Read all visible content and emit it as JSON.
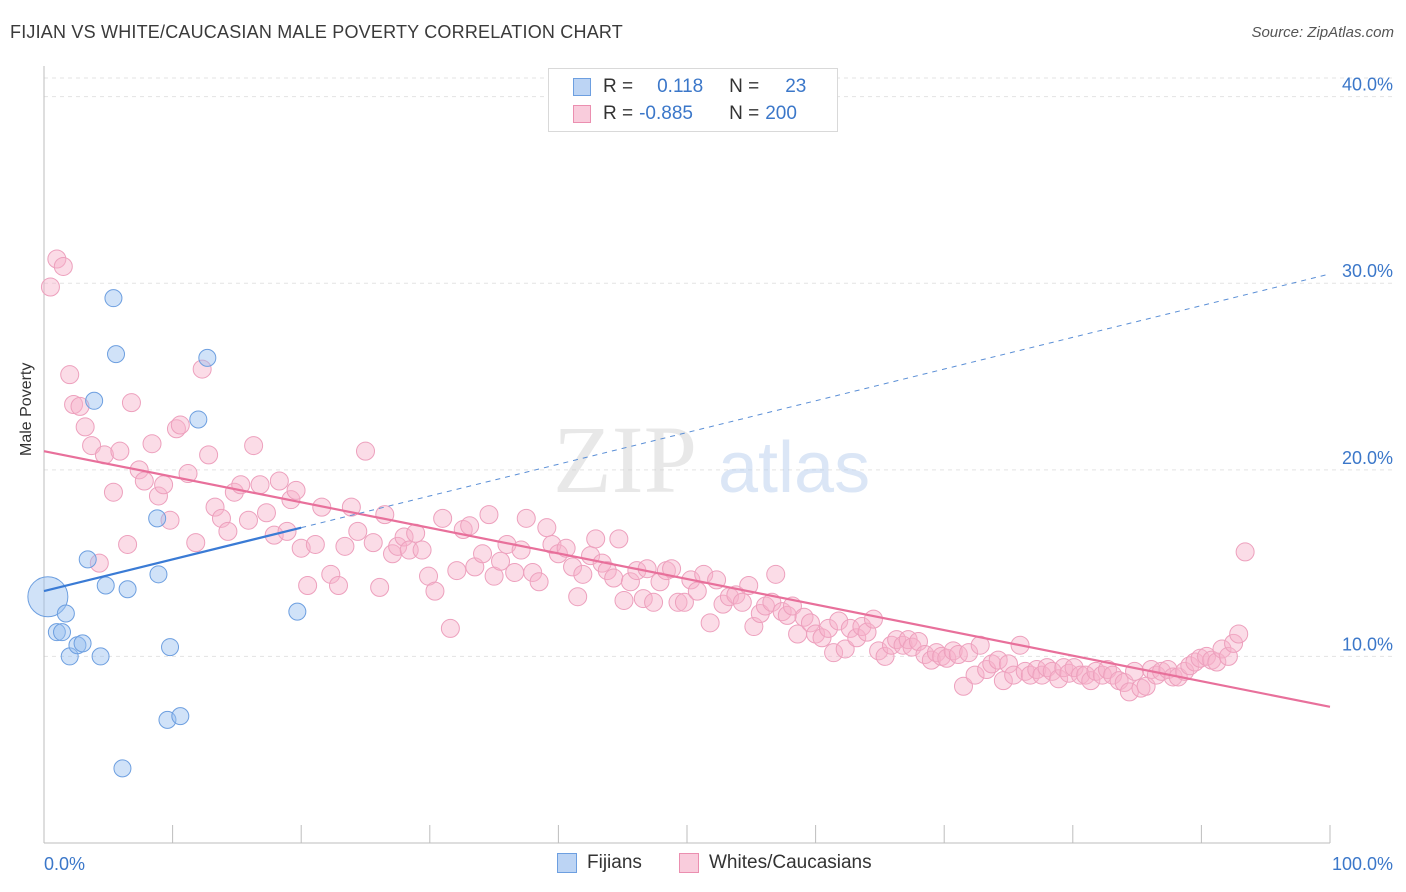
{
  "title": "FIJIAN VS WHITE/CAUCASIAN MALE POVERTY CORRELATION CHART",
  "source": "Source: ZipAtlas.com",
  "watermark": {
    "zip": "ZIP",
    "atlas": "atlas"
  },
  "stats": [
    {
      "r_label": "R =",
      "r_value": "0.118",
      "n_label": "N =",
      "n_value": "23",
      "color": "#aac8f0",
      "border": "#6d9fe0"
    },
    {
      "r_label": "R =",
      "r_value": "-0.885",
      "n_label": "N =",
      "n_value": "200",
      "color": "#f7c0d2",
      "border": "#eb8fb0"
    }
  ],
  "legend": [
    {
      "label": "Fijians",
      "color": "#bcd4f4",
      "border": "#6d9fe0"
    },
    {
      "label": "Whites/Caucasians",
      "color": "#f9ccdc",
      "border": "#eb8fb0"
    }
  ],
  "chart_data": {
    "type": "scatter",
    "title": "FIJIAN VS WHITE/CAUCASIAN MALE POVERTY CORRELATION CHART",
    "xlabel": "",
    "ylabel": "Male Poverty",
    "xlim": [
      0,
      100
    ],
    "ylim": [
      0,
      41
    ],
    "x_tick_labels": [
      "0.0%",
      "100.0%"
    ],
    "y_ticks": [
      10,
      20,
      30,
      40
    ],
    "y_tick_labels": [
      "10.0%",
      "20.0%",
      "30.0%",
      "40.0%"
    ],
    "grid": true,
    "legend_position": "bottom",
    "series": [
      {
        "name": "Fijians",
        "color": "#5b8fd6",
        "fill": "rgba(150,190,240,0.45)",
        "points": [
          [
            0.3,
            13.2
          ],
          [
            1.0,
            11.3
          ],
          [
            1.4,
            11.3
          ],
          [
            1.7,
            12.3
          ],
          [
            2.0,
            10.0
          ],
          [
            2.6,
            10.6
          ],
          [
            3.0,
            10.7
          ],
          [
            3.4,
            15.2
          ],
          [
            3.9,
            23.7
          ],
          [
            4.4,
            10.0
          ],
          [
            4.8,
            13.8
          ],
          [
            5.4,
            29.2
          ],
          [
            5.6,
            26.2
          ],
          [
            6.1,
            4.0
          ],
          [
            6.5,
            13.6
          ],
          [
            8.8,
            17.4
          ],
          [
            8.9,
            14.4
          ],
          [
            9.6,
            6.6
          ],
          [
            9.8,
            10.5
          ],
          [
            10.6,
            6.8
          ],
          [
            12.0,
            22.7
          ],
          [
            12.7,
            26.0
          ],
          [
            19.7,
            12.4
          ]
        ],
        "trend": {
          "x": [
            0,
            100
          ],
          "y": [
            13.5,
            30.5
          ],
          "solid_until": 20
        }
      },
      {
        "name": "Whites/Caucasians",
        "color": "#e8709b",
        "fill": "rgba(246,178,201,0.45)",
        "points": [
          [
            0.5,
            29.8
          ],
          [
            1.0,
            31.3
          ],
          [
            1.5,
            30.9
          ],
          [
            2.0,
            25.1
          ],
          [
            2.3,
            23.5
          ],
          [
            2.8,
            23.4
          ],
          [
            3.2,
            22.3
          ],
          [
            3.7,
            21.3
          ],
          [
            4.3,
            15.0
          ],
          [
            4.7,
            20.8
          ],
          [
            5.4,
            18.8
          ],
          [
            5.9,
            21.0
          ],
          [
            6.5,
            16.0
          ],
          [
            6.8,
            23.6
          ],
          [
            7.4,
            20.0
          ],
          [
            7.8,
            19.4
          ],
          [
            8.4,
            21.4
          ],
          [
            8.9,
            18.6
          ],
          [
            9.3,
            19.2
          ],
          [
            9.8,
            17.3
          ],
          [
            10.3,
            22.2
          ],
          [
            10.6,
            22.4
          ],
          [
            11.2,
            19.8
          ],
          [
            11.8,
            16.1
          ],
          [
            12.3,
            25.4
          ],
          [
            12.8,
            20.8
          ],
          [
            13.3,
            18.0
          ],
          [
            13.8,
            17.4
          ],
          [
            14.3,
            16.7
          ],
          [
            14.8,
            18.8
          ],
          [
            15.3,
            19.2
          ],
          [
            15.9,
            17.3
          ],
          [
            16.3,
            21.3
          ],
          [
            16.8,
            19.2
          ],
          [
            17.3,
            17.7
          ],
          [
            17.9,
            16.5
          ],
          [
            18.3,
            19.4
          ],
          [
            18.9,
            16.7
          ],
          [
            19.2,
            18.4
          ],
          [
            19.6,
            18.9
          ],
          [
            20.0,
            15.8
          ],
          [
            20.5,
            13.8
          ],
          [
            21.1,
            16.0
          ],
          [
            21.6,
            18.0
          ],
          [
            22.3,
            14.4
          ],
          [
            22.9,
            13.8
          ],
          [
            23.4,
            15.9
          ],
          [
            23.9,
            18.0
          ],
          [
            24.4,
            16.7
          ],
          [
            25.0,
            21.0
          ],
          [
            25.6,
            16.1
          ],
          [
            26.1,
            13.7
          ],
          [
            26.5,
            17.6
          ],
          [
            27.1,
            15.5
          ],
          [
            27.5,
            15.9
          ],
          [
            28.0,
            16.4
          ],
          [
            28.4,
            15.7
          ],
          [
            28.9,
            16.6
          ],
          [
            29.4,
            15.7
          ],
          [
            29.9,
            14.3
          ],
          [
            30.4,
            13.5
          ],
          [
            31.0,
            17.4
          ],
          [
            31.6,
            11.5
          ],
          [
            32.1,
            14.6
          ],
          [
            32.6,
            16.8
          ],
          [
            33.1,
            17.0
          ],
          [
            33.5,
            14.8
          ],
          [
            34.1,
            15.5
          ],
          [
            34.6,
            17.6
          ],
          [
            35.0,
            14.3
          ],
          [
            35.5,
            15.1
          ],
          [
            36.0,
            16.0
          ],
          [
            36.6,
            14.5
          ],
          [
            37.1,
            15.7
          ],
          [
            37.5,
            17.4
          ],
          [
            38.0,
            14.5
          ],
          [
            38.5,
            14.0
          ],
          [
            39.1,
            16.9
          ],
          [
            39.5,
            16.0
          ],
          [
            40.0,
            15.5
          ],
          [
            40.6,
            15.8
          ],
          [
            41.1,
            14.8
          ],
          [
            41.5,
            13.2
          ],
          [
            41.9,
            14.4
          ],
          [
            42.5,
            15.4
          ],
          [
            42.9,
            16.3
          ],
          [
            43.4,
            15.0
          ],
          [
            43.8,
            14.6
          ],
          [
            44.3,
            14.2
          ],
          [
            44.7,
            16.3
          ],
          [
            45.1,
            13.0
          ],
          [
            45.6,
            14.0
          ],
          [
            46.1,
            14.6
          ],
          [
            46.6,
            13.1
          ],
          [
            46.9,
            14.7
          ],
          [
            47.4,
            12.9
          ],
          [
            47.9,
            14.0
          ],
          [
            48.4,
            14.6
          ],
          [
            48.8,
            14.7
          ],
          [
            49.3,
            12.9
          ],
          [
            49.8,
            12.9
          ],
          [
            50.3,
            14.1
          ],
          [
            50.8,
            13.5
          ],
          [
            51.3,
            14.4
          ],
          [
            51.8,
            11.8
          ],
          [
            52.3,
            14.1
          ],
          [
            52.8,
            12.8
          ],
          [
            53.3,
            13.2
          ],
          [
            53.8,
            13.3
          ],
          [
            54.3,
            12.9
          ],
          [
            54.8,
            13.8
          ],
          [
            55.2,
            11.6
          ],
          [
            55.7,
            12.3
          ],
          [
            56.1,
            12.7
          ],
          [
            56.6,
            12.9
          ],
          [
            56.9,
            14.4
          ],
          [
            57.4,
            12.4
          ],
          [
            57.8,
            12.2
          ],
          [
            58.2,
            12.7
          ],
          [
            58.6,
            11.2
          ],
          [
            59.1,
            12.1
          ],
          [
            59.6,
            11.8
          ],
          [
            60.0,
            11.2
          ],
          [
            60.5,
            11.0
          ],
          [
            61.0,
            11.5
          ],
          [
            61.4,
            10.2
          ],
          [
            61.8,
            11.9
          ],
          [
            62.3,
            10.4
          ],
          [
            62.7,
            11.5
          ],
          [
            63.2,
            11.0
          ],
          [
            63.6,
            11.6
          ],
          [
            64.0,
            11.3
          ],
          [
            64.5,
            12.0
          ],
          [
            64.9,
            10.3
          ],
          [
            65.4,
            10.0
          ],
          [
            65.9,
            10.6
          ],
          [
            66.3,
            10.9
          ],
          [
            66.8,
            10.6
          ],
          [
            67.2,
            10.9
          ],
          [
            67.5,
            10.5
          ],
          [
            68.0,
            10.8
          ],
          [
            68.5,
            10.1
          ],
          [
            69.0,
            9.8
          ],
          [
            69.4,
            10.2
          ],
          [
            69.8,
            10.0
          ],
          [
            70.2,
            9.9
          ],
          [
            70.7,
            10.3
          ],
          [
            71.1,
            10.1
          ],
          [
            71.5,
            8.4
          ],
          [
            71.9,
            10.2
          ],
          [
            72.4,
            9.0
          ],
          [
            72.8,
            10.6
          ],
          [
            73.3,
            9.3
          ],
          [
            73.7,
            9.6
          ],
          [
            74.2,
            9.8
          ],
          [
            74.6,
            8.7
          ],
          [
            75.0,
            9.6
          ],
          [
            75.4,
            9.0
          ],
          [
            75.9,
            10.6
          ],
          [
            76.3,
            9.2
          ],
          [
            76.7,
            9.0
          ],
          [
            77.2,
            9.3
          ],
          [
            77.6,
            9.0
          ],
          [
            78.0,
            9.4
          ],
          [
            78.4,
            9.2
          ],
          [
            78.9,
            8.8
          ],
          [
            79.3,
            9.4
          ],
          [
            79.7,
            9.1
          ],
          [
            80.1,
            9.4
          ],
          [
            80.6,
            9.0
          ],
          [
            81.0,
            9.0
          ],
          [
            81.4,
            8.7
          ],
          [
            81.8,
            9.2
          ],
          [
            82.3,
            9.0
          ],
          [
            82.7,
            9.3
          ],
          [
            83.1,
            9.0
          ],
          [
            83.6,
            8.7
          ],
          [
            84.0,
            8.6
          ],
          [
            84.4,
            8.1
          ],
          [
            84.8,
            9.2
          ],
          [
            85.3,
            8.3
          ],
          [
            85.7,
            8.4
          ],
          [
            86.1,
            9.3
          ],
          [
            86.5,
            9.0
          ],
          [
            86.9,
            9.2
          ],
          [
            87.4,
            9.3
          ],
          [
            87.8,
            8.9
          ],
          [
            88.2,
            8.9
          ],
          [
            88.7,
            9.2
          ],
          [
            89.1,
            9.5
          ],
          [
            89.5,
            9.7
          ],
          [
            89.9,
            9.9
          ],
          [
            90.4,
            10.0
          ],
          [
            90.8,
            9.8
          ],
          [
            91.2,
            9.7
          ],
          [
            91.6,
            10.4
          ],
          [
            92.1,
            10.0
          ],
          [
            92.5,
            10.7
          ],
          [
            92.9,
            11.2
          ],
          [
            93.4,
            15.6
          ]
        ],
        "trend": {
          "x": [
            0,
            100
          ],
          "y": [
            21.0,
            7.3
          ]
        }
      }
    ]
  }
}
